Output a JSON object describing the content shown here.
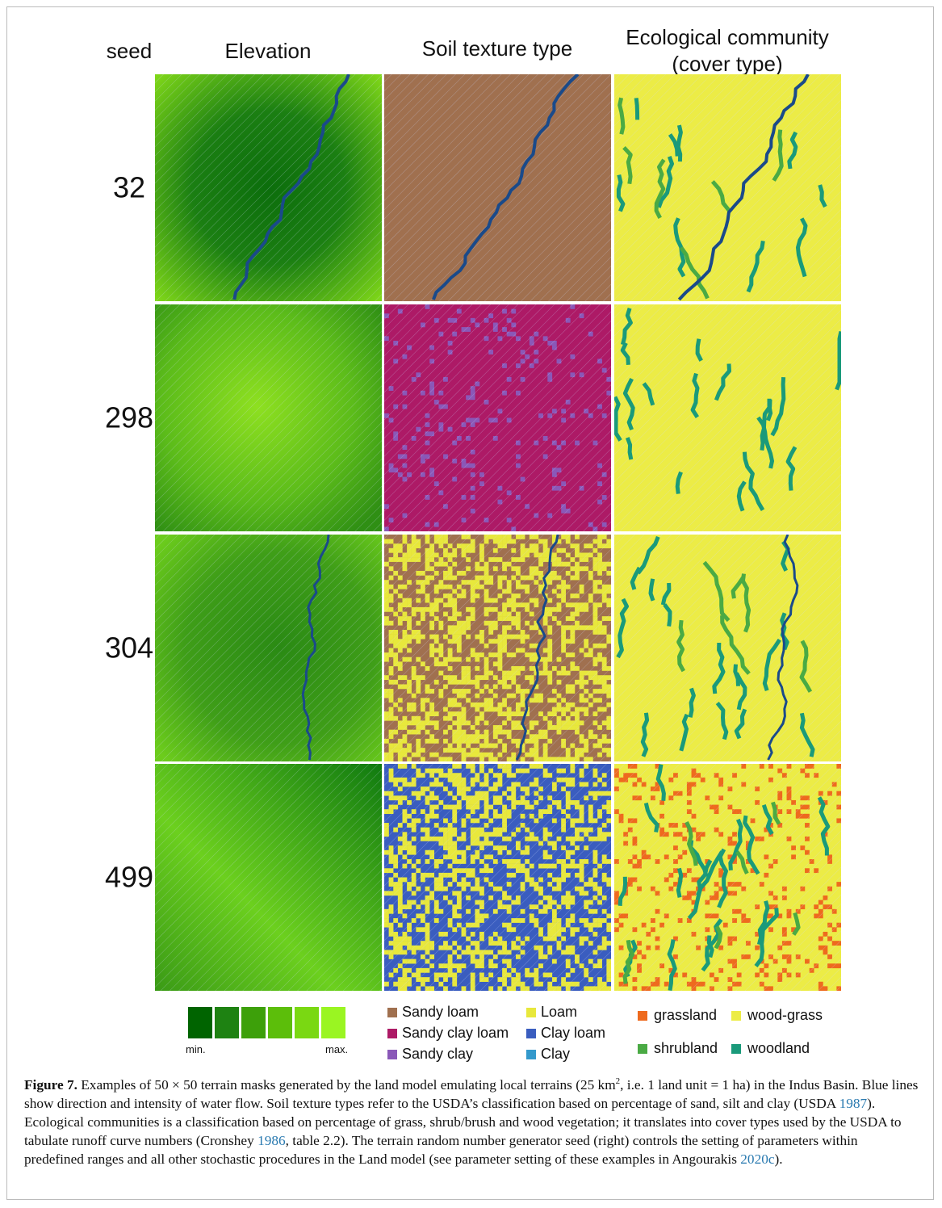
{
  "header": {
    "seed": "seed",
    "columns": [
      {
        "title": "Elevation"
      },
      {
        "title": "Soil texture type"
      },
      {
        "title": "Ecological community",
        "subtitle": "(cover type)"
      }
    ]
  },
  "seeds": [
    "32",
    "298",
    "304",
    "499"
  ],
  "legends": {
    "elevation": {
      "colors": [
        "#006400",
        "#1e8212",
        "#3da00a",
        "#5cbe0a",
        "#7ad812",
        "#9af522"
      ],
      "min_label": "min.",
      "max_label": "max."
    },
    "soil": [
      {
        "label": "Sandy loam",
        "color": "#a0704f"
      },
      {
        "label": "Sandy clay loam",
        "color": "#ad1a66"
      },
      {
        "label": "Sandy clay",
        "color": "#8a58b8"
      },
      {
        "label": "Loam",
        "color": "#e8e83c"
      },
      {
        "label": "Clay loam",
        "color": "#3a5dbf"
      },
      {
        "label": "Clay",
        "color": "#3399cc"
      }
    ],
    "cover": [
      {
        "label": "grassland",
        "color": "#ee6a1e"
      },
      {
        "label": "wood-grass",
        "color": "#ecec46"
      },
      {
        "label": "shrubland",
        "color": "#4aaa44"
      },
      {
        "label": "woodland",
        "color": "#1a9a7a"
      }
    ]
  },
  "caption": {
    "label": "Figure 7.",
    "segments": [
      " Examples of 50 × 50 terrain masks generated by the land model emulating local terrains (25 km",
      "2",
      ", i.e. 1 land unit = 1 ha) in the Indus Basin. Blue lines show direction and intensity of water flow. Soil texture types refer to the USDA’s classification based on percentage of sand, silt and clay (USDA ",
      "1987",
      "). Ecological communities is a classification based on percentage of grass, shrub/brush and wood vegetation; it translates into cover types used by the USDA to tabulate runoff curve numbers (Cronshey ",
      "1986",
      ", table 2.2). The terrain random number generator seed (right) controls the setting of parameters within predefined ranges and all other stochastic procedures in the Land model (see parameter setting of these examples in Angourakis ",
      "2020c",
      ")."
    ]
  }
}
